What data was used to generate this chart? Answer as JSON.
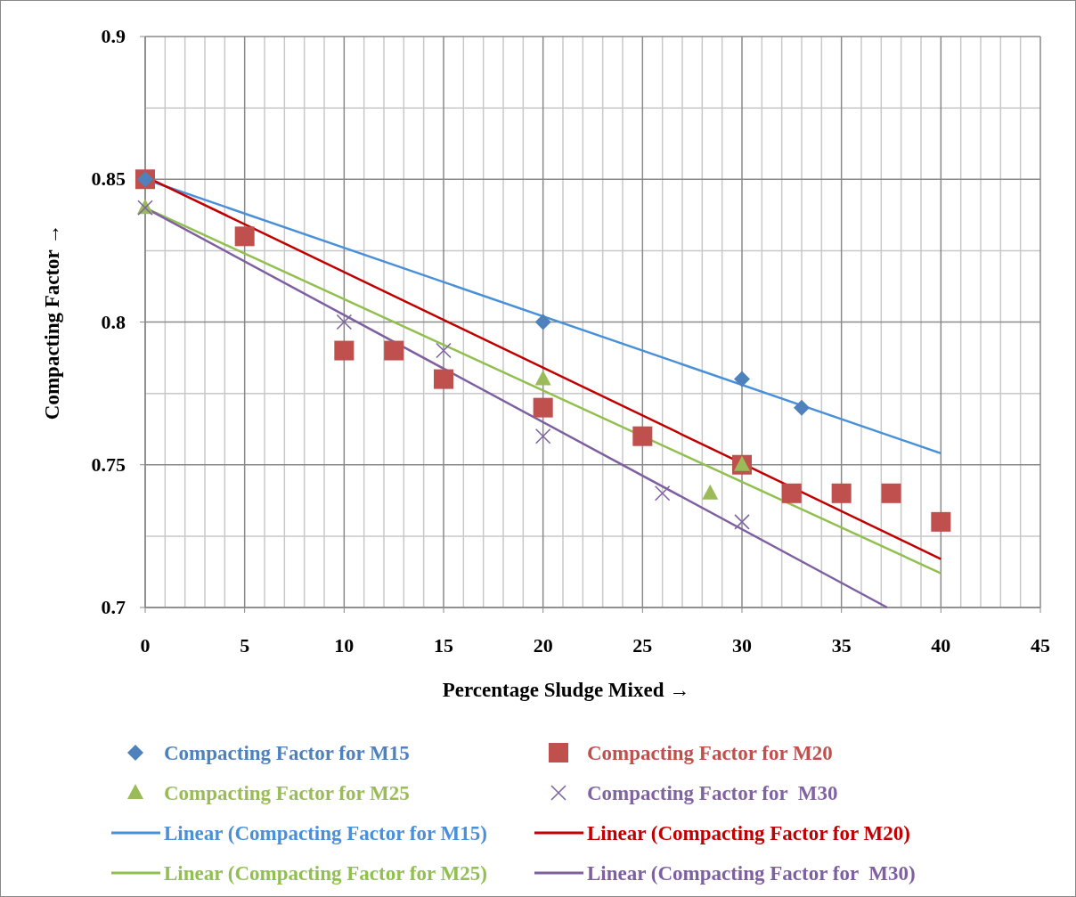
{
  "chart_data": {
    "type": "scatter",
    "xlabel": "Percentage Sludge Mixed →",
    "ylabel": "Compacting Factor →",
    "xlim": [
      0,
      45
    ],
    "xticks": [
      0,
      5,
      10,
      15,
      20,
      25,
      30,
      35,
      40,
      45
    ],
    "ylim": [
      0.7,
      0.9
    ],
    "yticks": [
      0.7,
      0.75,
      0.8,
      0.85,
      0.9
    ],
    "grid": true,
    "legend": "bottom",
    "series": [
      {
        "name": "Compacting Factor for M15",
        "marker": "diamond",
        "color": "#4f81bd",
        "x": [
          0,
          20,
          30,
          33
        ],
        "values": [
          0.85,
          0.8,
          0.78,
          0.77
        ]
      },
      {
        "name": "Compacting Factor for M20",
        "marker": "square",
        "color": "#c0504d",
        "x": [
          0,
          5,
          10,
          12.5,
          15,
          20,
          25,
          30,
          32.5,
          35,
          37.5,
          40
        ],
        "values": [
          0.85,
          0.83,
          0.79,
          0.79,
          0.78,
          0.77,
          0.76,
          0.75,
          0.74,
          0.74,
          0.74,
          0.73
        ]
      },
      {
        "name": "Compacting Factor for M25",
        "marker": "triangle",
        "color": "#9bbb59",
        "x": [
          0,
          20,
          28.4,
          30
        ],
        "values": [
          0.84,
          0.78,
          0.74,
          0.75
        ]
      },
      {
        "name": "Compacting Factor for  M30",
        "marker": "cross",
        "color": "#8064a2",
        "x": [
          0,
          10,
          15,
          20,
          26,
          30
        ],
        "values": [
          0.84,
          0.8,
          0.79,
          0.76,
          0.74,
          0.73
        ]
      },
      {
        "name": "Linear (Compacting Factor for M15)",
        "type": "line",
        "marker": "none",
        "color": "#4a90d9",
        "x": [
          0,
          40
        ],
        "values": [
          0.85,
          0.754
        ]
      },
      {
        "name": "Linear (Compacting Factor for M20)",
        "type": "line",
        "marker": "none",
        "color": "#c00000",
        "x": [
          0,
          40
        ],
        "values": [
          0.851,
          0.717
        ]
      },
      {
        "name": "Linear (Compacting Factor for M25)",
        "type": "line",
        "marker": "none",
        "color": "#92c050",
        "x": [
          0,
          40
        ],
        "values": [
          0.84,
          0.712
        ]
      },
      {
        "name": "Linear (Compacting Factor for  M30)",
        "type": "line",
        "marker": "none",
        "color": "#7e60a0",
        "x": [
          0,
          37.3
        ],
        "values": [
          0.84,
          0.7
        ]
      }
    ]
  }
}
